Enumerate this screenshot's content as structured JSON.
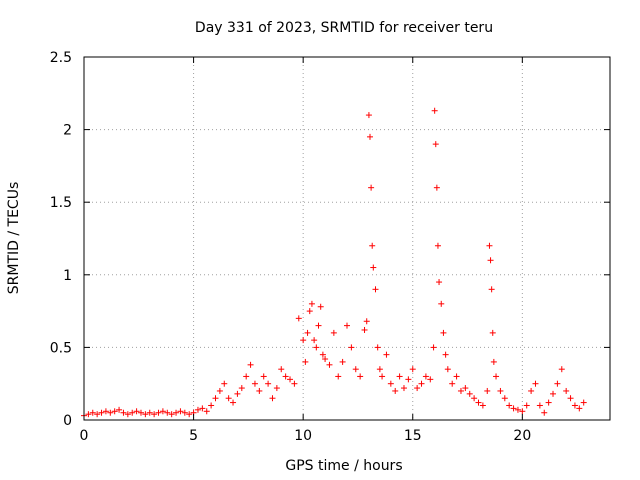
{
  "chart_data": {
    "type": "scatter",
    "title": "Day 331 of 2023, SRMTID for receiver teru",
    "xlabel": "GPS time / hours",
    "ylabel": "SRMTID / TECUs",
    "xlim": [
      0,
      24
    ],
    "ylim": [
      0,
      2.5
    ],
    "x_ticks": [
      0,
      5,
      10,
      15,
      20
    ],
    "x_tick_labels": [
      "0",
      "5",
      "10",
      "15",
      "20"
    ],
    "y_ticks": [
      0,
      0.5,
      1,
      1.5,
      2,
      2.5
    ],
    "y_tick_labels": [
      "0",
      "0.5",
      "1",
      "1.5",
      "2",
      "2.5"
    ],
    "grid": true,
    "marker": "+",
    "color": "#ff0000",
    "series": [
      {
        "name": "SRMTID",
        "x": [
          0.0,
          0.2,
          0.4,
          0.6,
          0.8,
          1.0,
          1.2,
          1.4,
          1.6,
          1.8,
          2.0,
          2.2,
          2.4,
          2.6,
          2.8,
          3.0,
          3.2,
          3.4,
          3.6,
          3.8,
          4.0,
          4.2,
          4.4,
          4.6,
          4.8,
          5.0,
          5.2,
          5.4,
          5.6,
          5.8,
          6.0,
          6.2,
          6.4,
          6.6,
          6.8,
          7.0,
          7.2,
          7.4,
          7.6,
          7.8,
          8.0,
          8.2,
          8.4,
          8.6,
          8.8,
          9.0,
          9.2,
          9.4,
          9.6,
          9.8,
          10.0,
          10.1,
          10.2,
          10.3,
          10.4,
          10.5,
          10.6,
          10.7,
          10.8,
          10.9,
          11.0,
          11.2,
          11.4,
          11.6,
          11.8,
          12.0,
          12.2,
          12.4,
          12.6,
          12.8,
          12.9,
          13.0,
          13.05,
          13.1,
          13.15,
          13.2,
          13.3,
          13.4,
          13.5,
          13.6,
          13.8,
          14.0,
          14.2,
          14.4,
          14.6,
          14.8,
          15.0,
          15.2,
          15.4,
          15.6,
          15.8,
          15.95,
          16.0,
          16.05,
          16.1,
          16.15,
          16.2,
          16.3,
          16.4,
          16.5,
          16.6,
          16.8,
          17.0,
          17.2,
          17.4,
          17.6,
          17.8,
          18.0,
          18.2,
          18.4,
          18.5,
          18.55,
          18.6,
          18.65,
          18.7,
          18.8,
          19.0,
          19.2,
          19.4,
          19.6,
          19.8,
          20.0,
          20.2,
          20.4,
          20.6,
          20.8,
          21.0,
          21.2,
          21.4,
          21.6,
          21.8,
          22.0,
          22.2,
          22.4,
          22.6,
          22.8
        ],
        "values": [
          0.03,
          0.04,
          0.05,
          0.04,
          0.05,
          0.06,
          0.05,
          0.06,
          0.07,
          0.05,
          0.04,
          0.05,
          0.06,
          0.05,
          0.04,
          0.05,
          0.04,
          0.05,
          0.06,
          0.05,
          0.04,
          0.05,
          0.06,
          0.05,
          0.04,
          0.05,
          0.07,
          0.08,
          0.06,
          0.1,
          0.15,
          0.2,
          0.25,
          0.15,
          0.12,
          0.18,
          0.22,
          0.3,
          0.38,
          0.25,
          0.2,
          0.3,
          0.25,
          0.15,
          0.22,
          0.35,
          0.3,
          0.28,
          0.25,
          0.7,
          0.55,
          0.4,
          0.6,
          0.75,
          0.8,
          0.55,
          0.5,
          0.65,
          0.78,
          0.45,
          0.42,
          0.38,
          0.6,
          0.3,
          0.4,
          0.65,
          0.5,
          0.35,
          0.3,
          0.62,
          0.68,
          2.1,
          1.95,
          1.6,
          1.2,
          1.05,
          0.9,
          0.5,
          0.35,
          0.3,
          0.45,
          0.25,
          0.2,
          0.3,
          0.22,
          0.28,
          0.35,
          0.22,
          0.25,
          0.3,
          0.28,
          0.5,
          2.13,
          1.9,
          1.6,
          1.2,
          0.95,
          0.8,
          0.6,
          0.45,
          0.35,
          0.25,
          0.3,
          0.2,
          0.22,
          0.18,
          0.15,
          0.12,
          0.1,
          0.2,
          1.2,
          1.1,
          0.9,
          0.6,
          0.4,
          0.3,
          0.2,
          0.15,
          0.1,
          0.08,
          0.07,
          0.06,
          0.1,
          0.2,
          0.25,
          0.1,
          0.05,
          0.12,
          0.18,
          0.25,
          0.35,
          0.2,
          0.15,
          0.1,
          0.08,
          0.12
        ]
      }
    ]
  }
}
